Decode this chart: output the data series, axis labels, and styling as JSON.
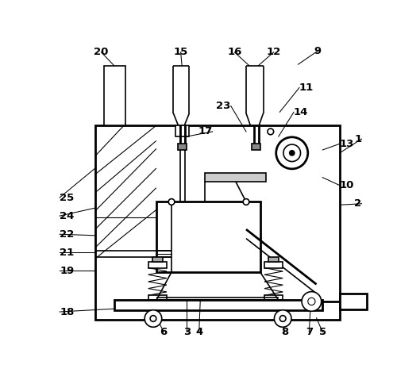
{
  "bg_color": "#ffffff",
  "line_color": "#000000",
  "fig_width": 5.29,
  "fig_height": 4.84,
  "dpi": 100
}
